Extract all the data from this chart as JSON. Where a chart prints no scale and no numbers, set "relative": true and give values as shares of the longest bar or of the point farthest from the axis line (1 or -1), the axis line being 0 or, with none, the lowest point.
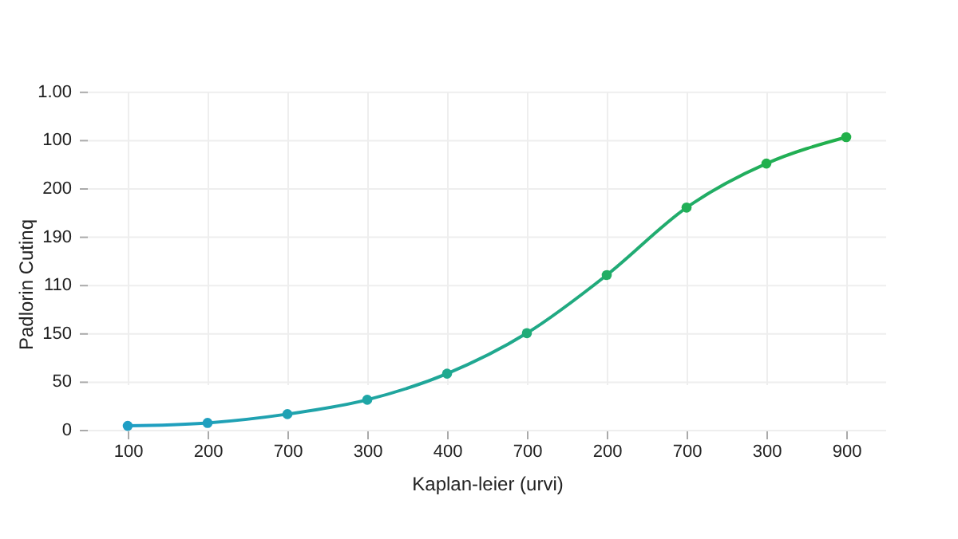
{
  "chart_data": {
    "type": "line",
    "xlabel": "Kaplan-leier (urvi)",
    "ylabel": "Padlorin Cutinq",
    "categories": [
      "100",
      "200",
      "700",
      "300",
      "400",
      "700",
      "200",
      "700",
      "300",
      "900"
    ],
    "relative": true,
    "series": [
      {
        "color": "#20a890",
        "colors": [
          "#1f9ec4",
          "#1f9fbf",
          "#1fa2b4",
          "#1fa6a6",
          "#1fa98f",
          "#20ac78",
          "#21ae65",
          "#21af57",
          "#22b04e",
          "#22b04a"
        ],
        "values": [
          0.016,
          0.026,
          0.056,
          0.105,
          0.194,
          0.332,
          0.53,
          0.76,
          0.91,
          1
        ]
      }
    ],
    "annotations": [
      "0",
      "50",
      "150",
      "110",
      "190",
      "200",
      "100",
      "1.00"
    ],
    "grid": true,
    "marker": "circle"
  }
}
